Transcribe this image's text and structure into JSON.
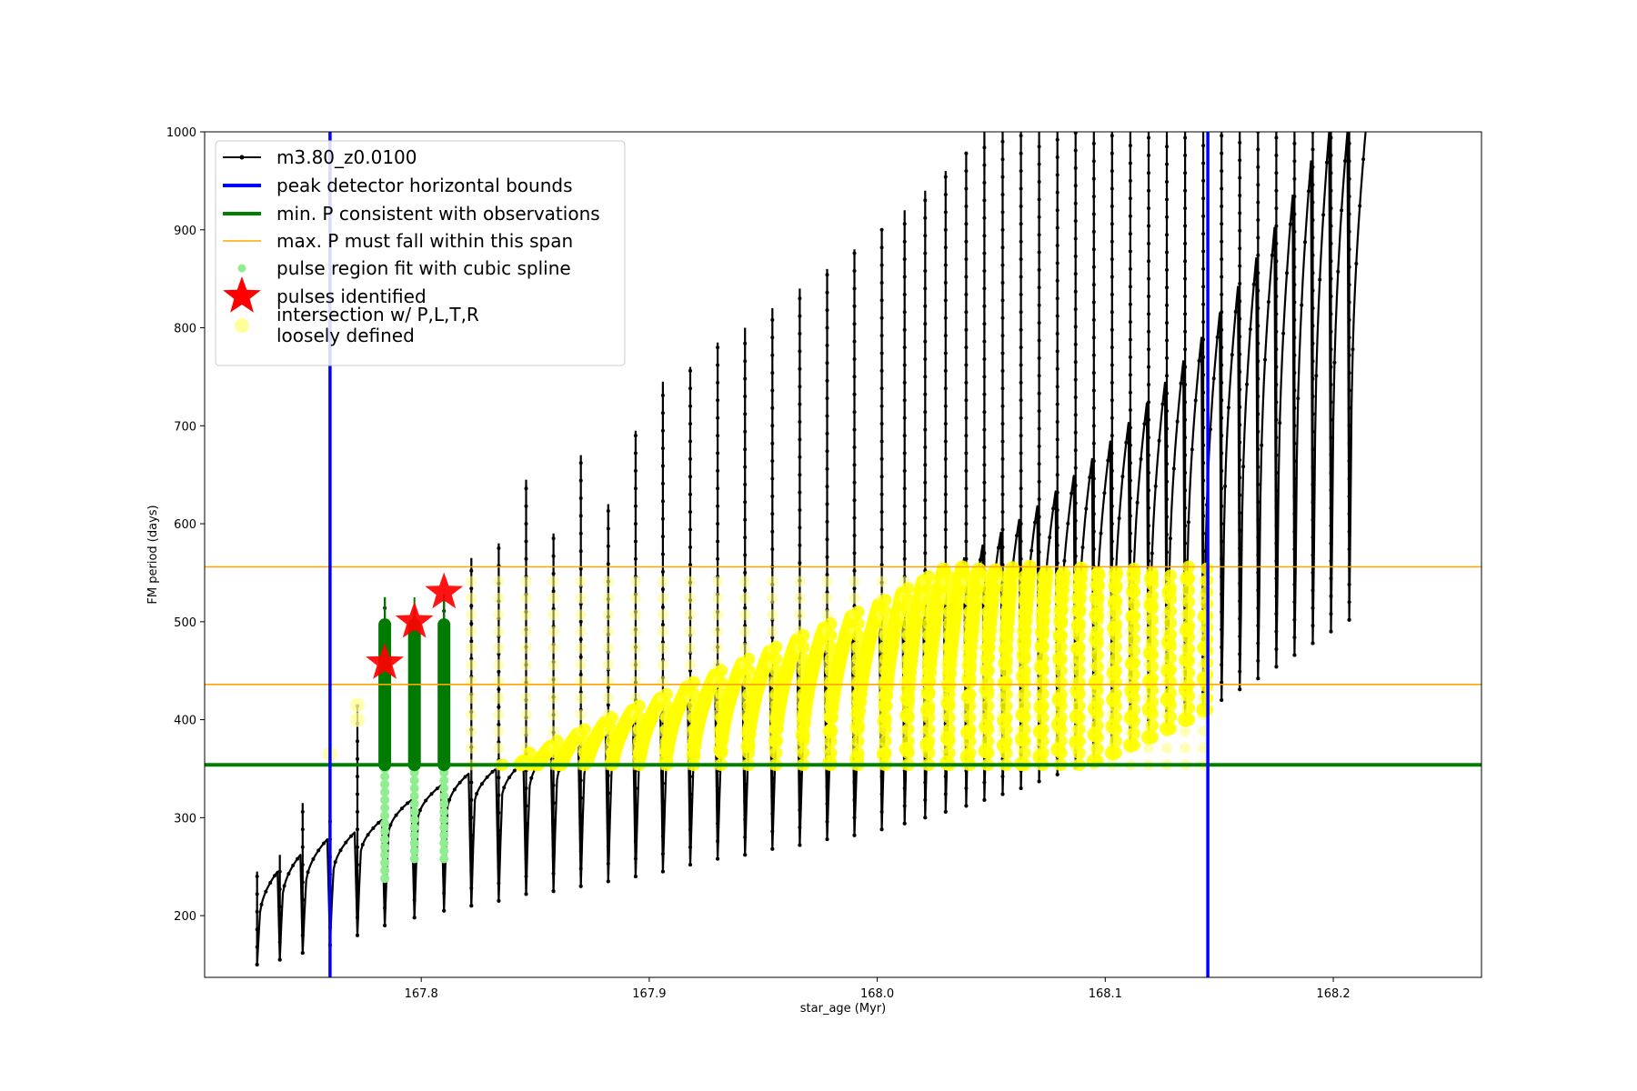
{
  "chart_data": {
    "type": "line",
    "xlabel": "star_age (Myr)",
    "ylabel": "FM period (days)",
    "xlim": [
      167.705,
      168.265
    ],
    "ylim": [
      137,
      1000
    ],
    "x_ticks": [
      {
        "value": 167.8,
        "label": "167.8"
      },
      {
        "value": 167.9,
        "label": "167.9"
      },
      {
        "value": 168.0,
        "label": "168.0"
      },
      {
        "value": 168.1,
        "label": "168.1"
      },
      {
        "value": 168.2,
        "label": "168.2"
      }
    ],
    "y_ticks": [
      {
        "value": 200,
        "label": "200"
      },
      {
        "value": 300,
        "label": "300"
      },
      {
        "value": 400,
        "label": "400"
      },
      {
        "value": 500,
        "label": "500"
      },
      {
        "value": 600,
        "label": "600"
      },
      {
        "value": 700,
        "label": "700"
      },
      {
        "value": 800,
        "label": "800"
      },
      {
        "value": 900,
        "label": "900"
      },
      {
        "value": 1000,
        "label": "1000"
      }
    ],
    "grid": false,
    "legend_position": "upper-left",
    "legend": [
      {
        "label": "m3.80_z0.0100",
        "symbol": "line-dot",
        "color": "#000000"
      },
      {
        "label": "peak detector horizontal bounds",
        "symbol": "line",
        "color": "#0000ff"
      },
      {
        "label": "min. P consistent with observations",
        "symbol": "line",
        "color": "#008000"
      },
      {
        "label": "max. P must fall within this span",
        "symbol": "line",
        "color": "#ffa500"
      },
      {
        "label": "pulse region fit with cubic spline",
        "symbol": "dot",
        "color": "#90ee90"
      },
      {
        "label": "pulses identified",
        "symbol": "star",
        "color": "#ff0000"
      },
      {
        "label": "intersection w/ P,L,T,R\nloosely defined",
        "symbol": "dot",
        "color": "#ffff99"
      }
    ],
    "series": [
      {
        "name": "m3.80_z0.0100",
        "color": "#000000",
        "pulses": [
          {
            "x": 167.728,
            "min": 150,
            "base": 195,
            "peak": 245,
            "spike": 245
          },
          {
            "x": 167.738,
            "min": 155,
            "base": 215,
            "peak": 262,
            "spike": 262
          },
          {
            "x": 167.748,
            "min": 162,
            "base": 228,
            "peak": 278,
            "spike": 315
          },
          {
            "x": 167.76,
            "min": 170,
            "base": 240,
            "peak": 285,
            "spike": 300
          },
          {
            "x": 167.772,
            "min": 180,
            "base": 260,
            "peak": 298,
            "spike": 415
          },
          {
            "x": 167.784,
            "min": 190,
            "base": 280,
            "peak": 318,
            "spike": 525
          },
          {
            "x": 167.797,
            "min": 198,
            "base": 295,
            "peak": 333,
            "spike": 515
          },
          {
            "x": 167.81,
            "min": 205,
            "base": 305,
            "peak": 345,
            "spike": 528
          },
          {
            "x": 167.822,
            "min": 210,
            "base": 312,
            "peak": 350,
            "spike": 565
          },
          {
            "x": 167.834,
            "min": 215,
            "base": 318,
            "peak": 357,
            "spike": 580
          },
          {
            "x": 167.846,
            "min": 222,
            "base": 325,
            "peak": 372,
            "spike": 645
          },
          {
            "x": 167.858,
            "min": 225,
            "base": 330,
            "peak": 385,
            "spike": 590
          },
          {
            "x": 167.87,
            "min": 230,
            "base": 335,
            "peak": 397,
            "spike": 670
          },
          {
            "x": 167.882,
            "min": 235,
            "base": 340,
            "peak": 409,
            "spike": 620
          },
          {
            "x": 167.894,
            "min": 240,
            "base": 344,
            "peak": 421,
            "spike": 695
          },
          {
            "x": 167.906,
            "min": 245,
            "base": 348,
            "peak": 433,
            "spike": 745
          },
          {
            "x": 167.918,
            "min": 252,
            "base": 352,
            "peak": 445,
            "spike": 760
          },
          {
            "x": 167.93,
            "min": 258,
            "base": 356,
            "peak": 457,
            "spike": 785
          },
          {
            "x": 167.942,
            "min": 262,
            "base": 360,
            "peak": 469,
            "spike": 800
          },
          {
            "x": 167.954,
            "min": 268,
            "base": 364,
            "peak": 481,
            "spike": 820
          },
          {
            "x": 167.966,
            "min": 272,
            "base": 368,
            "peak": 493,
            "spike": 840
          },
          {
            "x": 167.978,
            "min": 278,
            "base": 372,
            "peak": 505,
            "spike": 860
          },
          {
            "x": 167.99,
            "min": 282,
            "base": 376,
            "peak": 517,
            "spike": 880
          },
          {
            "x": 168.002,
            "min": 288,
            "base": 380,
            "peak": 529,
            "spike": 900
          },
          {
            "x": 168.012,
            "min": 294,
            "base": 385,
            "peak": 541,
            "spike": 920
          },
          {
            "x": 168.021,
            "min": 300,
            "base": 390,
            "peak": 553,
            "spike": 940
          },
          {
            "x": 168.03,
            "min": 306,
            "base": 396,
            "peak": 565,
            "spike": 960
          },
          {
            "x": 168.039,
            "min": 312,
            "base": 402,
            "peak": 578,
            "spike": 980
          },
          {
            "x": 168.047,
            "min": 318,
            "base": 408,
            "peak": 591,
            "spike": 1000
          },
          {
            "x": 168.055,
            "min": 324,
            "base": 414,
            "peak": 604,
            "spike": 1000
          },
          {
            "x": 168.063,
            "min": 330,
            "base": 420,
            "peak": 618,
            "spike": 1000
          },
          {
            "x": 168.071,
            "min": 337,
            "base": 428,
            "peak": 633,
            "spike": 1000
          },
          {
            "x": 168.079,
            "min": 344,
            "base": 436,
            "peak": 649,
            "spike": 1000
          },
          {
            "x": 168.087,
            "min": 351,
            "base": 445,
            "peak": 666,
            "spike": 1000
          },
          {
            "x": 168.095,
            "min": 358,
            "base": 454,
            "peak": 684,
            "spike": 1000
          },
          {
            "x": 168.103,
            "min": 366,
            "base": 464,
            "peak": 703,
            "spike": 1000
          },
          {
            "x": 168.111,
            "min": 374,
            "base": 474,
            "peak": 723,
            "spike": 1000
          },
          {
            "x": 168.119,
            "min": 382,
            "base": 485,
            "peak": 744,
            "spike": 1000
          },
          {
            "x": 168.127,
            "min": 391,
            "base": 497,
            "peak": 766,
            "spike": 1000
          },
          {
            "x": 168.135,
            "min": 400,
            "base": 510,
            "peak": 790,
            "spike": 1000
          },
          {
            "x": 168.143,
            "min": 410,
            "base": 524,
            "peak": 815,
            "spike": 1000
          },
          {
            "x": 168.151,
            "min": 420,
            "base": 539,
            "peak": 842,
            "spike": 1000
          },
          {
            "x": 168.159,
            "min": 431,
            "base": 555,
            "peak": 871,
            "spike": 1000
          },
          {
            "x": 168.167,
            "min": 442,
            "base": 572,
            "peak": 902,
            "spike": 1000
          },
          {
            "x": 168.175,
            "min": 454,
            "base": 590,
            "peak": 935,
            "spike": 1000
          },
          {
            "x": 168.183,
            "min": 466,
            "base": 610,
            "peak": 970,
            "spike": 1000
          },
          {
            "x": 168.191,
            "min": 478,
            "base": 630,
            "peak": 1000,
            "spike": 1000
          },
          {
            "x": 168.199,
            "min": 490,
            "base": 650,
            "peak": 1000,
            "spike": 1000
          },
          {
            "x": 168.207,
            "min": 502,
            "base": 670,
            "peak": 1000,
            "spike": 1000
          }
        ]
      },
      {
        "name": "peak detector horizontal bounds",
        "color": "#0000ff",
        "type": "vline",
        "x": [
          167.76,
          168.145
        ]
      },
      {
        "name": "min. P consistent with observations",
        "color": "#008000",
        "type": "hline",
        "y": [
          354
        ]
      },
      {
        "name": "max. P must fall within this span",
        "color": "#ffa500",
        "type": "hline",
        "y": [
          436,
          556
        ]
      },
      {
        "name": "pulse region fit with cubic spline",
        "color": "#90ee90",
        "type": "scatter-columns",
        "columns": [
          {
            "x": 167.784,
            "from": 238,
            "to": 497
          },
          {
            "x": 167.797,
            "from": 258,
            "to": 497
          },
          {
            "x": 167.81,
            "from": 258,
            "to": 497
          }
        ]
      },
      {
        "name": "pulses identified",
        "color": "#ff0000",
        "type": "scatter",
        "points": [
          {
            "x": 167.784,
            "y": 458
          },
          {
            "x": 167.797,
            "y": 500
          },
          {
            "x": 167.81,
            "y": 530
          }
        ]
      },
      {
        "name": "intersection w/ P,L,T,R\nloosely defined",
        "color": "#ffff00",
        "type": "scatter-band",
        "ymin": 354,
        "ymax": 556
      }
    ]
  }
}
